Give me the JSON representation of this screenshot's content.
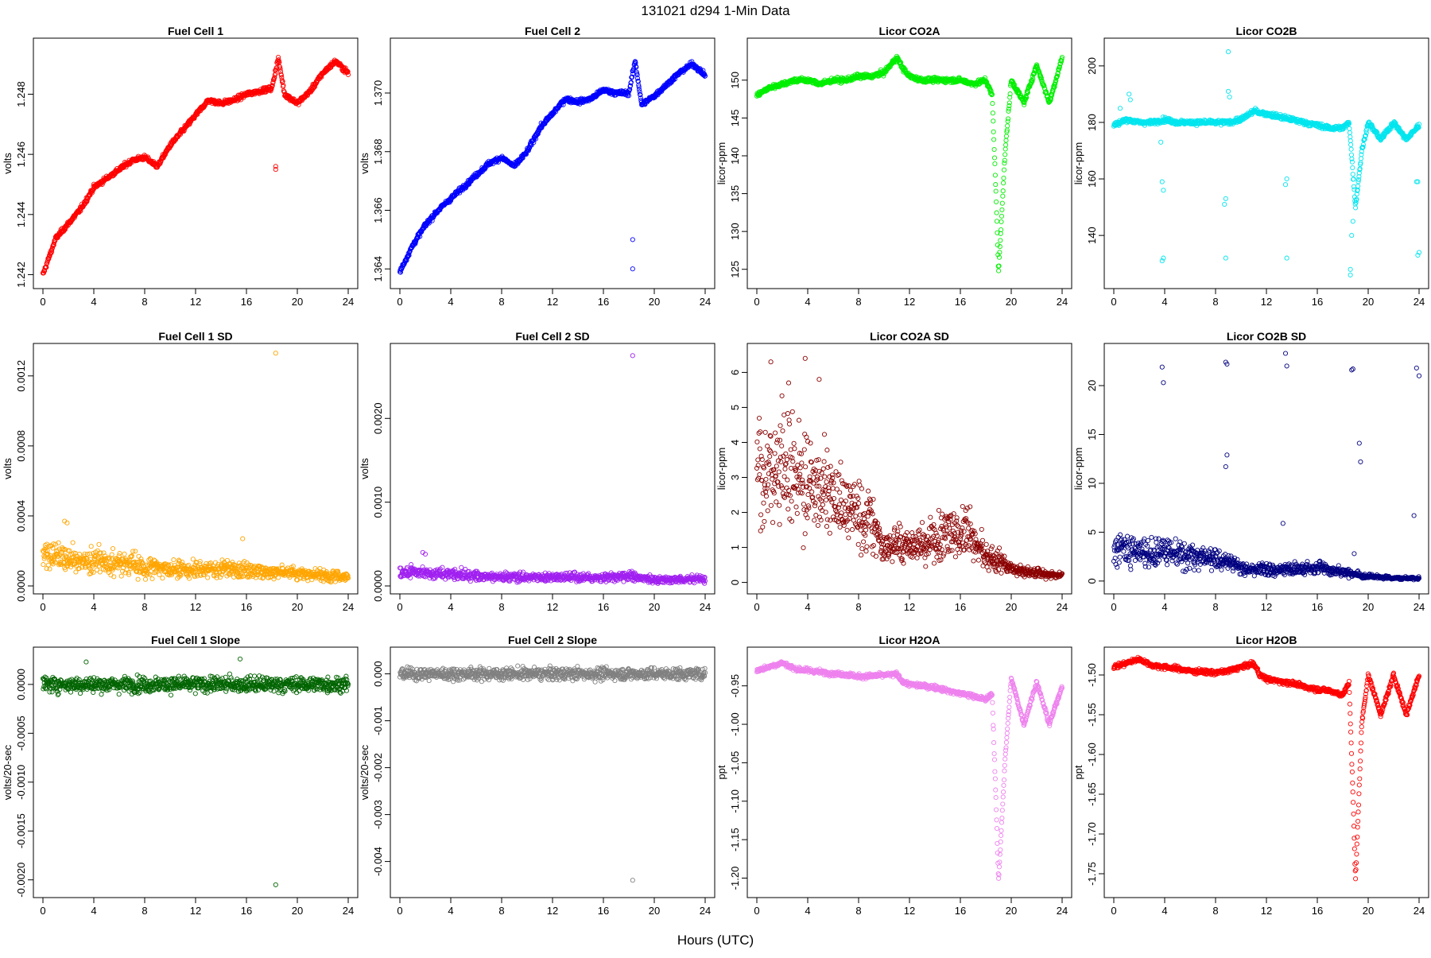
{
  "main_title": "131021    d294    1-Min Data",
  "x_axis_label": "Hours (UTC)",
  "chart_data": [
    {
      "id": "fc1",
      "type": "scatter",
      "title": "Fuel Cell 1",
      "ylabel": "volts",
      "color": "#ff0000",
      "xlim": [
        0,
        24
      ],
      "ylim": [
        1.2418,
        1.2496
      ],
      "xticks": [
        0,
        4,
        8,
        12,
        16,
        20,
        24
      ],
      "yticks": [
        "1.242",
        "1.244",
        "1.246",
        "1.248"
      ],
      "x": [
        0,
        1,
        2,
        3,
        4,
        5,
        6,
        7,
        8,
        9,
        10,
        11,
        12,
        13,
        14,
        15,
        16,
        17,
        18,
        18.5,
        19,
        20,
        21,
        22,
        23,
        24
      ],
      "y": [
        1.242,
        1.2432,
        1.2437,
        1.2442,
        1.2449,
        1.2452,
        1.2455,
        1.2458,
        1.2459,
        1.2456,
        1.2463,
        1.2468,
        1.2473,
        1.2478,
        1.2477,
        1.2478,
        1.248,
        1.2481,
        1.2482,
        1.2492,
        1.248,
        1.2477,
        1.2481,
        1.2487,
        1.2491,
        1.2487
      ],
      "outliers": [
        [
          18.3,
          1.2456
        ],
        [
          18.3,
          1.2455
        ]
      ]
    },
    {
      "id": "fc2",
      "type": "scatter",
      "title": "Fuel Cell 2",
      "ylabel": "volts",
      "color": "#0000ff",
      "xlim": [
        0,
        24
      ],
      "ylim": [
        1.3636,
        1.3716
      ],
      "xticks": [
        0,
        4,
        8,
        12,
        16,
        20,
        24
      ],
      "yticks": [
        "1.364",
        "1.366",
        "1.368",
        "1.370"
      ],
      "x": [
        0,
        1,
        2,
        3,
        4,
        5,
        6,
        7,
        8,
        9,
        10,
        11,
        12,
        13,
        14,
        15,
        16,
        17,
        18,
        18.5,
        19,
        20,
        21,
        22,
        23,
        24
      ],
      "y": [
        1.3639,
        1.3648,
        1.3655,
        1.366,
        1.3664,
        1.3668,
        1.3672,
        1.3676,
        1.3678,
        1.3675,
        1.368,
        1.3688,
        1.3693,
        1.3698,
        1.3697,
        1.3698,
        1.3701,
        1.37,
        1.37,
        1.3711,
        1.3696,
        1.3699,
        1.3703,
        1.3707,
        1.371,
        1.3706
      ],
      "outliers": [
        [
          18.3,
          1.365
        ],
        [
          18.3,
          1.364
        ]
      ]
    },
    {
      "id": "co2a",
      "type": "scatter",
      "title": "Licor CO2A",
      "ylabel": "licor-ppm",
      "color": "#00ee00",
      "xlim": [
        0,
        24
      ],
      "ylim": [
        123.5,
        154.5
      ],
      "xticks": [
        0,
        4,
        8,
        12,
        16,
        20,
        24
      ],
      "yticks": [
        "125",
        "130",
        "135",
        "140",
        "145",
        "150"
      ],
      "x": [
        0,
        1,
        2,
        3,
        4,
        5,
        6,
        7,
        8,
        9,
        10,
        11,
        11.5,
        12,
        13,
        14,
        15,
        16,
        17,
        18,
        18.5,
        18.8,
        19,
        19.5,
        20,
        21,
        22,
        23,
        24
      ],
      "y": [
        148,
        149,
        149.5,
        150,
        150,
        149.5,
        150,
        150,
        150.5,
        150.5,
        151,
        153,
        151.5,
        150.5,
        150,
        150,
        150,
        150,
        149.5,
        150,
        148,
        135,
        124.5,
        140,
        150,
        147,
        152,
        147,
        153
      ],
      "outliers": []
    },
    {
      "id": "co2b",
      "type": "scatter",
      "title": "Licor CO2B",
      "ylabel": "licor-ppm",
      "color": "#00e5ee",
      "xlim": [
        0,
        24
      ],
      "ylim": [
        124,
        207
      ],
      "xticks": [
        0,
        4,
        8,
        12,
        16,
        20,
        24
      ],
      "yticks": [
        "140",
        "160",
        "180",
        "200"
      ],
      "x": [
        0,
        1,
        2,
        3,
        4,
        5,
        6,
        7,
        8,
        9,
        10,
        11,
        12,
        13,
        14,
        15,
        16,
        17,
        18,
        18.5,
        19,
        19.5,
        20,
        21,
        22,
        23,
        24
      ],
      "y": [
        179,
        181,
        180,
        180,
        181,
        180,
        180,
        180,
        180,
        180,
        181,
        184,
        183,
        182,
        181,
        180,
        179,
        178,
        178,
        180,
        150,
        170,
        180,
        174,
        180,
        174,
        179
      ],
      "outliers": [
        [
          0.5,
          185
        ],
        [
          1.2,
          190
        ],
        [
          1.3,
          188
        ],
        [
          3.7,
          173
        ],
        [
          3.8,
          159
        ],
        [
          3.9,
          156
        ],
        [
          3.9,
          132
        ],
        [
          3.8,
          131
        ],
        [
          8.7,
          151
        ],
        [
          8.8,
          153
        ],
        [
          8.8,
          132
        ],
        [
          9,
          205
        ],
        [
          9,
          191
        ],
        [
          9.1,
          189
        ],
        [
          13.5,
          158
        ],
        [
          13.6,
          160
        ],
        [
          13.6,
          132
        ],
        [
          18.6,
          128
        ],
        [
          18.6,
          126
        ],
        [
          18.7,
          140
        ],
        [
          18.8,
          145
        ],
        [
          23.8,
          159
        ],
        [
          23.9,
          159
        ],
        [
          23.9,
          133
        ],
        [
          24,
          134
        ]
      ]
    },
    {
      "id": "fc1sd",
      "type": "scatter",
      "title": "Fuel Cell 1 SD",
      "ylabel": "volts",
      "color": "#ffa500",
      "xlim": [
        0,
        24
      ],
      "ylim": [
        0,
        0.00134
      ],
      "xticks": [
        0,
        4,
        8,
        12,
        16,
        20,
        24
      ],
      "yticks": [
        "0.0000",
        "0.0004",
        "0.0008",
        "0.0012"
      ],
      "x": [
        0,
        2,
        4,
        6,
        8,
        10,
        12,
        14,
        16,
        18,
        20,
        22,
        24
      ],
      "y": [
        0.00017,
        0.00015,
        0.00014,
        0.00013,
        0.00011,
        0.0001,
        9e-05,
        0.0001,
        9e-05,
        8e-05,
        7e-05,
        6e-05,
        5e-05
      ],
      "outliers": [
        [
          18.3,
          0.00133
        ],
        [
          15.7,
          0.00027
        ],
        [
          1.7,
          0.00037
        ],
        [
          1.9,
          0.00036
        ]
      ]
    },
    {
      "id": "fc2sd",
      "type": "scatter",
      "title": "Fuel Cell 2 SD",
      "ylabel": "volts",
      "color": "#a020f0",
      "xlim": [
        0,
        24
      ],
      "ylim": [
        0,
        0.0028
      ],
      "xticks": [
        0,
        4,
        8,
        12,
        16,
        20,
        24
      ],
      "yticks": [
        "0.0000",
        "0.0010",
        "0.0020"
      ],
      "x": [
        0,
        2,
        4,
        6,
        8,
        10,
        12,
        14,
        16,
        18,
        20,
        22,
        24
      ],
      "y": [
        0.00017,
        0.00015,
        0.00014,
        0.00012,
        0.00011,
        0.0001,
        0.0001,
        0.0001,
        0.0001,
        0.00012,
        8e-05,
        8e-05,
        8e-05
      ],
      "outliers": [
        [
          18.3,
          0.00275
        ],
        [
          1.8,
          0.0004
        ],
        [
          2,
          0.00038
        ]
      ]
    },
    {
      "id": "co2asd",
      "type": "scatter",
      "title": "Licor CO2A SD",
      "ylabel": "licor-ppm",
      "color": "#8b0000",
      "xlim": [
        0,
        24
      ],
      "ylim": [
        -0.1,
        6.6
      ],
      "xticks": [
        0,
        4,
        8,
        12,
        16,
        20,
        24
      ],
      "yticks": [
        "0",
        "1",
        "2",
        "3",
        "4",
        "5",
        "6"
      ],
      "x": [
        0,
        1,
        2,
        3,
        4,
        5,
        6,
        7,
        8,
        9,
        10,
        11,
        12,
        13,
        14,
        15,
        16,
        17,
        18,
        19,
        20,
        21,
        22,
        23,
        24
      ],
      "y": [
        3.0,
        3.1,
        3.2,
        3.0,
        2.8,
        2.7,
        2.4,
        2.1,
        1.9,
        1.7,
        1.0,
        1.2,
        1.0,
        1.1,
        1.2,
        1.3,
        1.5,
        1.2,
        0.8,
        0.6,
        0.4,
        0.3,
        0.3,
        0.2,
        0.2
      ],
      "outliers": [
        [
          1.1,
          6.3
        ],
        [
          3.8,
          6.4
        ],
        [
          2.5,
          5.7
        ],
        [
          4.9,
          5.8
        ]
      ]
    },
    {
      "id": "co2bsd",
      "type": "scatter",
      "title": "Licor CO2B SD",
      "ylabel": "licor-ppm",
      "color": "#000080",
      "xlim": [
        0,
        24
      ],
      "ylim": [
        -0.5,
        23.5
      ],
      "xticks": [
        0,
        4,
        8,
        12,
        16,
        20,
        24
      ],
      "yticks": [
        "0",
        "5",
        "10",
        "15",
        "20"
      ],
      "x": [
        0,
        1,
        2,
        3,
        4,
        5,
        6,
        7,
        8,
        9,
        10,
        11,
        12,
        13,
        14,
        15,
        16,
        17,
        18,
        19,
        20,
        21,
        22,
        23,
        24
      ],
      "y": [
        3.5,
        3.2,
        3.0,
        2.9,
        3.0,
        2.9,
        2.6,
        2.4,
        2.2,
        2.0,
        1.3,
        1.2,
        1.2,
        1.1,
        1.2,
        1.3,
        1.4,
        1.1,
        0.9,
        0.7,
        0.5,
        0.4,
        0.3,
        0.3,
        0.3
      ],
      "outliers": [
        [
          3.8,
          21.9
        ],
        [
          3.9,
          20.3
        ],
        [
          8.8,
          22.4
        ],
        [
          8.9,
          22.2
        ],
        [
          13.5,
          23.3
        ],
        [
          13.6,
          22.0
        ],
        [
          18.7,
          21.6
        ],
        [
          18.8,
          21.7
        ],
        [
          23.8,
          21.8
        ],
        [
          24,
          21.0
        ],
        [
          8.9,
          12.9
        ],
        [
          8.8,
          11.7
        ],
        [
          19.3,
          14.1
        ],
        [
          19.4,
          12.2
        ],
        [
          13.3,
          5.9
        ],
        [
          23.6,
          6.7
        ],
        [
          18.9,
          2.8
        ]
      ]
    },
    {
      "id": "fc1slope",
      "type": "scatter",
      "title": "Fuel Cell 1 Slope",
      "ylabel": "volts/20-sec",
      "color": "#006400",
      "xlim": [
        0,
        24
      ],
      "ylim": [
        -0.0021,
        0.0003
      ],
      "xticks": [
        0,
        4,
        8,
        12,
        16,
        20,
        24
      ],
      "yticks": [
        "-0.0020",
        "-0.0015",
        "-0.0010",
        "-0.0005",
        "0.0000"
      ],
      "x": [
        0,
        4,
        8,
        12,
        16,
        20,
        24
      ],
      "y": [
        0,
        0,
        0,
        0,
        0,
        0,
        0
      ],
      "outliers": [
        [
          18.3,
          -0.00205
        ],
        [
          15.5,
          0.00026
        ],
        [
          3.4,
          0.00023
        ]
      ]
    },
    {
      "id": "fc2slope",
      "type": "scatter",
      "title": "Fuel Cell 2 Slope",
      "ylabel": "volts/20-sec",
      "color": "#808080",
      "xlim": [
        0,
        24
      ],
      "ylim": [
        -0.0046,
        0.0004
      ],
      "xticks": [
        0,
        4,
        8,
        12,
        16,
        20,
        24
      ],
      "yticks": [
        "-0.004",
        "-0.003",
        "-0.002",
        "-0.001",
        "0.000"
      ],
      "x": [
        0,
        4,
        8,
        12,
        16,
        20,
        24
      ],
      "y": [
        0,
        0,
        0,
        0,
        0,
        0,
        0
      ],
      "outliers": [
        [
          18.3,
          -0.0044
        ]
      ]
    },
    {
      "id": "h2oa",
      "type": "scatter",
      "title": "Licor H2OA",
      "ylabel": "ppt",
      "color": "#ee82ee",
      "xlim": [
        0,
        24
      ],
      "ylim": [
        -1.215,
        -0.91
      ],
      "xticks": [
        0,
        4,
        8,
        12,
        16,
        20,
        24
      ],
      "yticks": [
        "-1.20",
        "-1.15",
        "-1.10",
        "-1.05",
        "-1.00",
        "-0.95"
      ],
      "x": [
        0,
        1,
        2,
        3,
        4,
        5,
        6,
        7,
        8,
        9,
        10,
        11,
        11.5,
        12,
        13,
        14,
        15,
        16,
        17,
        18,
        18.5,
        18.8,
        19,
        19.5,
        20,
        21,
        22,
        23,
        24
      ],
      "y": [
        -0.93,
        -0.925,
        -0.92,
        -0.928,
        -0.93,
        -0.932,
        -0.934,
        -0.935,
        -0.938,
        -0.937,
        -0.936,
        -0.935,
        -0.945,
        -0.948,
        -0.95,
        -0.952,
        -0.956,
        -0.96,
        -0.963,
        -0.968,
        -0.96,
        -1.1,
        -1.205,
        -1.05,
        -0.94,
        -1.0,
        -0.945,
        -1.0,
        -0.95
      ],
      "outliers": []
    },
    {
      "id": "h2ob",
      "type": "scatter",
      "title": "Licor H2OB",
      "ylabel": "ppt",
      "color": "#ff0000",
      "xlim": [
        0,
        24
      ],
      "ylim": [
        -1.77,
        -1.475
      ],
      "xticks": [
        0,
        4,
        8,
        12,
        16,
        20,
        24
      ],
      "yticks": [
        "-1.75",
        "-1.70",
        "-1.65",
        "-1.60",
        "-1.55",
        "-1.50"
      ],
      "x": [
        0,
        1,
        2,
        3,
        4,
        5,
        6,
        7,
        8,
        9,
        10,
        11,
        11.5,
        12,
        13,
        14,
        15,
        16,
        17,
        18,
        18.5,
        18.8,
        19,
        19.5,
        20,
        21,
        22,
        23,
        24
      ],
      "y": [
        -1.49,
        -1.485,
        -1.48,
        -1.488,
        -1.49,
        -1.492,
        -1.495,
        -1.496,
        -1.497,
        -1.495,
        -1.49,
        -1.486,
        -1.5,
        -1.505,
        -1.508,
        -1.51,
        -1.515,
        -1.518,
        -1.52,
        -1.525,
        -1.51,
        -1.65,
        -1.76,
        -1.56,
        -1.5,
        -1.55,
        -1.5,
        -1.55,
        -1.5
      ],
      "outliers": []
    }
  ]
}
